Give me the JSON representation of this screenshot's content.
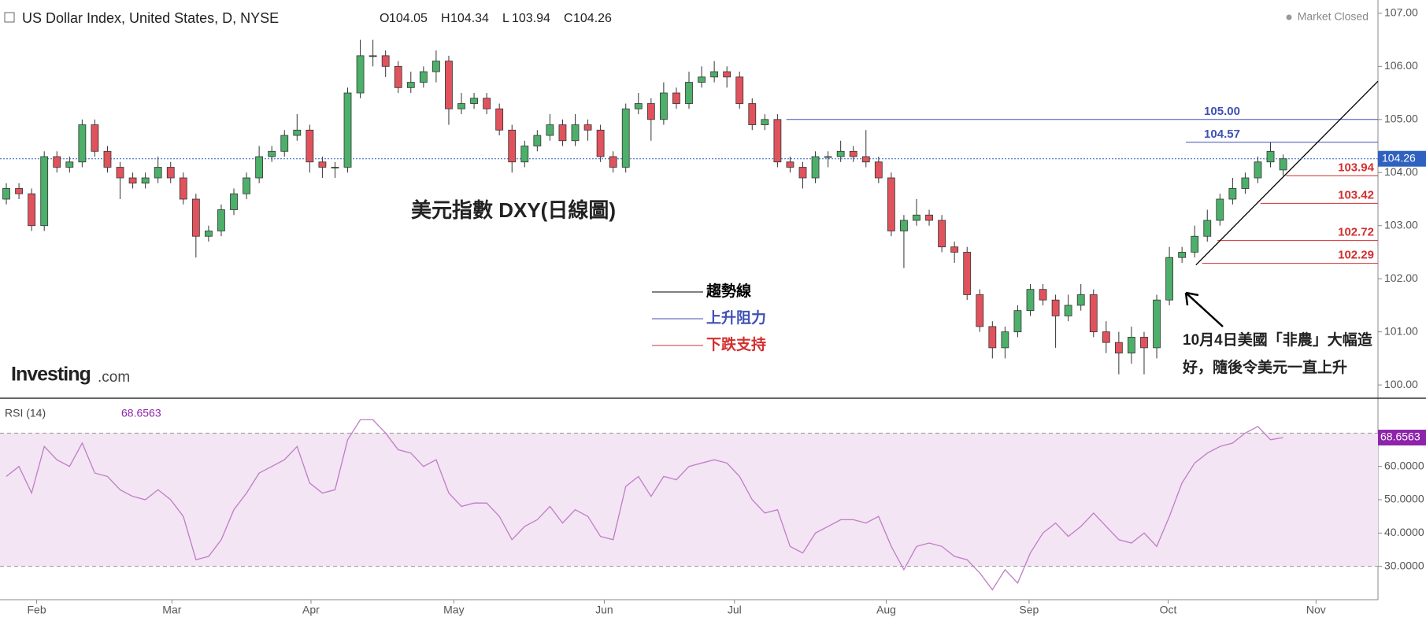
{
  "header": {
    "title": "US Dollar Index, United States, D, NYSE",
    "ohlc_labels": [
      "O",
      "H",
      "L",
      "C"
    ],
    "status": "Market Closed",
    "logo": "Investing",
    "logo_suffix": ".com",
    "annotation": "美元指數 DXY(日線圖)",
    "legend": [
      {
        "label": "趨勢線",
        "color": "#000000"
      },
      {
        "label": "上升阻力",
        "color": "#3f51b5"
      },
      {
        "label": "下跌支持",
        "color": "#d32f2f"
      }
    ],
    "note": [
      "10月4日美國「非農」大幅造",
      "好，隨後令美元一直上升"
    ]
  },
  "chart_data": [
    {
      "type": "candlestick",
      "up_color": "#4caf6a",
      "down_color": "#e0535d",
      "xlim": [
        -0.5,
        108.5
      ],
      "xticks": [
        {
          "value": 2.4,
          "label": "Feb"
        },
        {
          "value": 13.1,
          "label": "Mar"
        },
        {
          "value": 24.1,
          "label": "Apr"
        },
        {
          "value": 35.4,
          "label": "May"
        },
        {
          "value": 47.3,
          "label": "Jun"
        },
        {
          "value": 57.6,
          "label": "Jul"
        },
        {
          "value": 69.6,
          "label": "Aug"
        },
        {
          "value": 80.9,
          "label": "Sep"
        },
        {
          "value": 91.9,
          "label": "Oct"
        },
        {
          "value": 103.6,
          "label": "Nov"
        }
      ],
      "ylim": [
        99.75,
        107.25
      ],
      "yticks": [
        {
          "value": 100,
          "label": "100.00"
        },
        {
          "value": 101,
          "label": "101.00"
        },
        {
          "value": 102,
          "label": "102.00"
        },
        {
          "value": 103,
          "label": "103.00"
        },
        {
          "value": 104,
          "label": "104.00"
        },
        {
          "value": 105,
          "label": "105.00"
        },
        {
          "value": 106,
          "label": "106.00"
        },
        {
          "value": 107,
          "label": "107.00"
        }
      ],
      "open": [
        103.5,
        103.7,
        103.6,
        103.0,
        104.3,
        104.1,
        104.2,
        104.9,
        104.4,
        104.1,
        103.9,
        103.8,
        103.9,
        104.1,
        103.9,
        103.5,
        102.8,
        102.9,
        103.3,
        103.6,
        103.9,
        104.3,
        104.4,
        104.7,
        104.8,
        104.2,
        104.1,
        104.1,
        105.5,
        106.2,
        106.2,
        106.0,
        105.6,
        105.7,
        105.9,
        106.1,
        105.2,
        105.3,
        105.4,
        105.2,
        104.8,
        104.2,
        104.5,
        104.7,
        104.9,
        104.6,
        104.9,
        104.8,
        104.3,
        104.1,
        105.2,
        105.3,
        105.0,
        105.5,
        105.3,
        105.7,
        105.8,
        105.9,
        105.8,
        105.3,
        104.9,
        105.0,
        104.2,
        104.1,
        103.9,
        104.3,
        104.3,
        104.4,
        104.3,
        104.2,
        103.9,
        102.9,
        103.1,
        103.2,
        103.1,
        102.6,
        102.5,
        101.7,
        101.1,
        100.7,
        101.0,
        101.4,
        101.8,
        101.6,
        101.3,
        101.5,
        101.7,
        101.0,
        100.8,
        100.6,
        100.9,
        100.7,
        101.6,
        102.4,
        102.5,
        102.8,
        103.1,
        103.5,
        103.7,
        103.9,
        104.2,
        104.05
      ],
      "high": [
        103.8,
        103.8,
        103.7,
        104.4,
        104.4,
        104.3,
        105.0,
        105.0,
        104.5,
        104.2,
        104.0,
        104.0,
        104.3,
        104.2,
        104.0,
        103.6,
        103.0,
        103.4,
        103.7,
        104.0,
        104.5,
        104.5,
        104.8,
        105.1,
        104.9,
        104.3,
        104.2,
        105.6,
        106.5,
        106.5,
        106.3,
        106.1,
        105.9,
        106.0,
        106.3,
        106.2,
        105.5,
        105.5,
        105.5,
        105.3,
        104.9,
        104.6,
        104.8,
        105.1,
        105.0,
        105.1,
        105.0,
        104.9,
        104.4,
        105.3,
        105.5,
        105.4,
        105.7,
        105.6,
        105.9,
        106.0,
        106.1,
        106.0,
        105.9,
        105.4,
        105.1,
        105.1,
        104.3,
        104.2,
        104.4,
        104.4,
        104.6,
        104.5,
        104.8,
        104.3,
        104.0,
        103.2,
        103.5,
        103.3,
        103.2,
        102.7,
        102.6,
        101.8,
        101.2,
        101.1,
        101.5,
        101.9,
        101.9,
        101.7,
        101.7,
        101.9,
        101.8,
        101.2,
        101.0,
        101.1,
        101.0,
        101.7,
        102.6,
        102.6,
        103.0,
        103.3,
        103.6,
        103.9,
        104.0,
        104.3,
        104.57,
        104.34
      ],
      "low": [
        103.4,
        103.5,
        102.9,
        102.9,
        104.0,
        104.0,
        104.1,
        104.3,
        104.0,
        103.5,
        103.7,
        103.7,
        103.8,
        103.8,
        103.4,
        102.4,
        102.7,
        102.8,
        103.2,
        103.5,
        103.8,
        104.2,
        104.3,
        104.6,
        104.0,
        103.9,
        103.9,
        104.0,
        105.4,
        106.0,
        105.8,
        105.5,
        105.5,
        105.6,
        105.7,
        104.9,
        105.1,
        105.2,
        105.1,
        104.7,
        104.0,
        104.1,
        104.4,
        104.6,
        104.5,
        104.5,
        104.6,
        104.2,
        104.0,
        104.0,
        105.1,
        104.6,
        104.9,
        105.2,
        105.2,
        105.6,
        105.7,
        105.6,
        105.2,
        104.8,
        104.8,
        104.1,
        104.0,
        103.7,
        103.8,
        104.1,
        104.2,
        104.2,
        104.1,
        103.8,
        102.8,
        102.2,
        103.0,
        103.0,
        102.5,
        102.3,
        101.6,
        101.0,
        100.5,
        100.5,
        100.9,
        101.3,
        101.5,
        100.7,
        101.2,
        101.4,
        100.9,
        100.6,
        100.2,
        100.4,
        100.2,
        100.5,
        101.5,
        102.3,
        102.4,
        102.7,
        103.0,
        103.4,
        103.6,
        103.8,
        104.1,
        103.94
      ],
      "close": [
        103.7,
        103.6,
        103.0,
        104.3,
        104.1,
        104.2,
        104.9,
        104.4,
        104.1,
        103.9,
        103.8,
        103.9,
        104.1,
        103.9,
        103.5,
        102.8,
        102.9,
        103.3,
        103.6,
        103.9,
        104.3,
        104.4,
        104.7,
        104.8,
        104.2,
        104.1,
        104.1,
        105.5,
        106.2,
        106.2,
        106.0,
        105.6,
        105.7,
        105.9,
        106.1,
        105.2,
        105.3,
        105.4,
        105.2,
        104.8,
        104.2,
        104.5,
        104.7,
        104.9,
        104.6,
        104.9,
        104.8,
        104.3,
        104.1,
        105.2,
        105.3,
        105.0,
        105.5,
        105.3,
        105.7,
        105.8,
        105.9,
        105.8,
        105.3,
        104.9,
        105.0,
        104.2,
        104.1,
        103.9,
        104.3,
        104.3,
        104.4,
        104.3,
        104.2,
        103.9,
        102.9,
        103.1,
        103.2,
        103.1,
        102.6,
        102.5,
        101.7,
        101.1,
        100.7,
        101.0,
        101.4,
        101.8,
        101.6,
        101.3,
        101.5,
        101.7,
        101.0,
        100.8,
        100.6,
        100.9,
        100.7,
        101.6,
        102.4,
        102.5,
        102.8,
        103.1,
        103.5,
        103.7,
        103.9,
        104.2,
        104.4,
        104.26
      ],
      "levels": [
        {
          "value": 105,
          "label": "105.00",
          "from": 61.7,
          "color": "#3f51b5"
        },
        {
          "value": 104.57,
          "label": "104.57",
          "from": 93.3,
          "color": "#3f51b5"
        },
        {
          "value": 103.94,
          "label": "103.94",
          "from": 101.2,
          "color": "#d32f2f"
        },
        {
          "value": 103.42,
          "label": "103.42",
          "from": 99.2,
          "color": "#d32f2f"
        },
        {
          "value": 102.72,
          "label": "102.72",
          "from": 95.8,
          "color": "#d32f2f"
        },
        {
          "value": 102.29,
          "label": "102.29",
          "from": 94.6,
          "color": "#d32f2f"
        }
      ],
      "trendline": {
        "x": [
          94.1,
          108.5
        ],
        "y": [
          102.26,
          105.72
        ],
        "color": "#000000"
      },
      "last_color": "#2f62c0"
    },
    {
      "type": "line",
      "name": "RSI (14)",
      "color": "#c07cc8",
      "xlim": [
        -0.5,
        108.5
      ],
      "ylim": [
        20,
        80
      ],
      "yticks": [
        {
          "value": 30,
          "label": "30.0000"
        },
        {
          "value": 40,
          "label": "40.0000"
        },
        {
          "value": 50,
          "label": "50.0000"
        },
        {
          "value": 60,
          "label": "60.0000"
        }
      ],
      "bands": [
        30,
        70
      ],
      "band_color": "#f3e5f3",
      "last_color": "#8e24aa",
      "values": [
        57,
        60,
        52,
        66,
        62,
        60,
        67,
        58,
        57,
        53,
        51,
        50,
        53,
        50,
        45,
        32,
        33,
        38,
        47,
        52,
        58,
        60,
        62,
        66,
        55,
        52,
        53,
        68,
        74,
        74,
        70,
        65,
        64,
        60,
        62,
        52,
        48,
        49,
        49,
        45,
        38,
        42,
        44,
        48,
        43,
        47,
        45,
        39,
        38,
        54,
        57,
        51,
        57,
        56,
        60,
        61,
        62,
        61,
        57,
        50,
        46,
        47,
        36,
        34,
        40,
        42,
        44,
        44,
        43,
        45,
        36,
        29,
        36,
        37,
        36,
        33,
        32,
        28,
        23,
        29,
        25,
        34,
        40,
        43,
        39,
        42,
        46,
        42,
        38,
        37,
        40,
        36,
        45,
        55,
        61,
        64,
        66,
        67,
        70,
        72,
        68,
        68.6563
      ]
    }
  ]
}
